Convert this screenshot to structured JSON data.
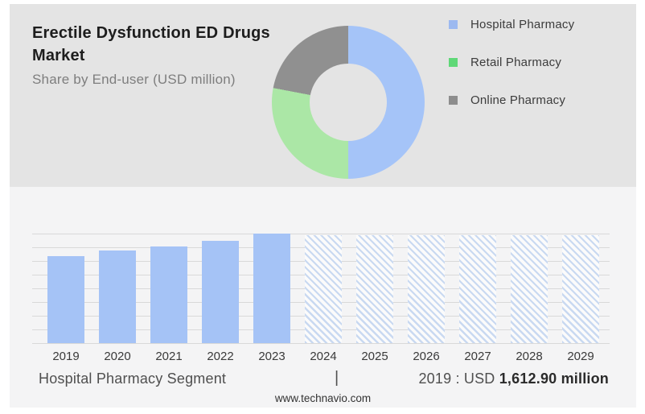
{
  "header": {
    "title_line1": "Erectile Dysfunction ED Drugs",
    "title_line2": "Market",
    "subtitle": "Share by End-user (USD million)"
  },
  "legend": {
    "items": [
      {
        "label": "Hospital Pharmacy",
        "color": "#9cb9f0"
      },
      {
        "label": "Retail Pharmacy",
        "color": "#5fd877"
      },
      {
        "label": "Online Pharmacy",
        "color": "#8d8d8d"
      }
    ]
  },
  "chart_data": [
    {
      "type": "pie",
      "donut": true,
      "title": "Share by End-user (USD million)",
      "start_angle_deg": 0,
      "legend_position": "right",
      "segments": [
        {
          "label": "Hospital Pharmacy",
          "percent": 50,
          "color": "#a5c4f8"
        },
        {
          "label": "Retail Pharmacy",
          "percent": 28,
          "color": "#abe7a6"
        },
        {
          "label": "Online Pharmacy",
          "percent": 22,
          "color": "#909090"
        }
      ]
    },
    {
      "type": "bar",
      "title": "Hospital Pharmacy Segment (USD million)",
      "categories": [
        "2019",
        "2020",
        "2021",
        "2022",
        "2023",
        "2024",
        "2025",
        "2026",
        "2027",
        "2028",
        "2029"
      ],
      "series": [
        {
          "name": "Hospital Pharmacy",
          "values": [
            1612.9,
            1715,
            1790,
            1895,
            2030,
            null,
            null,
            null,
            null,
            null,
            null
          ]
        }
      ],
      "forecast_years": [
        "2024",
        "2025",
        "2026",
        "2027",
        "2028",
        "2029"
      ],
      "forecast_style": "hatched",
      "xlabel": "",
      "ylabel": "",
      "ylim": [
        0,
        2040
      ],
      "grid": true,
      "yticks_labeled": false,
      "bar_color": "#a5c3f6",
      "hatch_bg_color": "#fbfbfb",
      "hatch_stripe_color": "#c9d9f1"
    }
  ],
  "footer": {
    "segment_label": "Hospital Pharmacy Segment",
    "separator": "|",
    "value_prefix": "2019 : USD",
    "value_bold": "1,612.90 million",
    "watermark": "www.technavio.com"
  }
}
